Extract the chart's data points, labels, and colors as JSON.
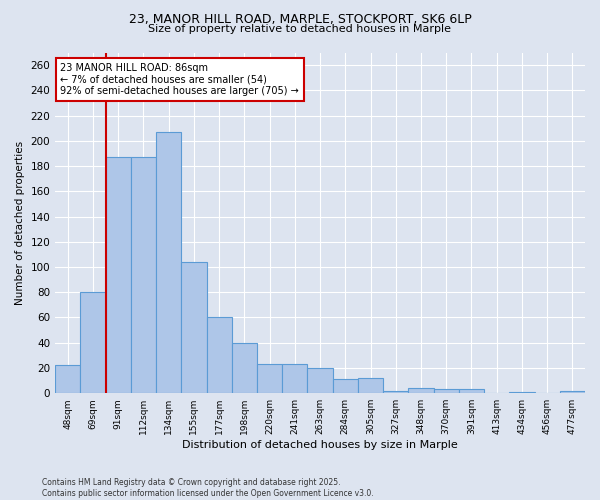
{
  "title_line1": "23, MANOR HILL ROAD, MARPLE, STOCKPORT, SK6 6LP",
  "title_line2": "Size of property relative to detached houses in Marple",
  "xlabel": "Distribution of detached houses by size in Marple",
  "ylabel": "Number of detached properties",
  "categories": [
    "48sqm",
    "69sqm",
    "91sqm",
    "112sqm",
    "134sqm",
    "155sqm",
    "177sqm",
    "198sqm",
    "220sqm",
    "241sqm",
    "263sqm",
    "284sqm",
    "305sqm",
    "327sqm",
    "348sqm",
    "370sqm",
    "391sqm",
    "413sqm",
    "434sqm",
    "456sqm",
    "477sqm"
  ],
  "values": [
    22,
    80,
    187,
    187,
    207,
    104,
    60,
    40,
    23,
    23,
    20,
    11,
    12,
    2,
    4,
    3,
    3,
    0,
    1,
    0,
    2
  ],
  "bar_color": "#aec6e8",
  "bar_edge_color": "#5b9bd5",
  "vline_x": 1.5,
  "marker_label_line1": "23 MANOR HILL ROAD: 86sqm",
  "marker_label_line2": "← 7% of detached houses are smaller (54)",
  "marker_label_line3": "92% of semi-detached houses are larger (705) →",
  "annotation_box_color": "#ffffff",
  "annotation_box_edge_color": "#cc0000",
  "vline_color": "#cc0000",
  "background_color": "#dde4f0",
  "plot_bg_color": "#dde4f0",
  "grid_color": "#ffffff",
  "ylim": [
    0,
    270
  ],
  "yticks": [
    0,
    20,
    40,
    60,
    80,
    100,
    120,
    140,
    160,
    180,
    200,
    220,
    240,
    260
  ],
  "footer_line1": "Contains HM Land Registry data © Crown copyright and database right 2025.",
  "footer_line2": "Contains public sector information licensed under the Open Government Licence v3.0."
}
